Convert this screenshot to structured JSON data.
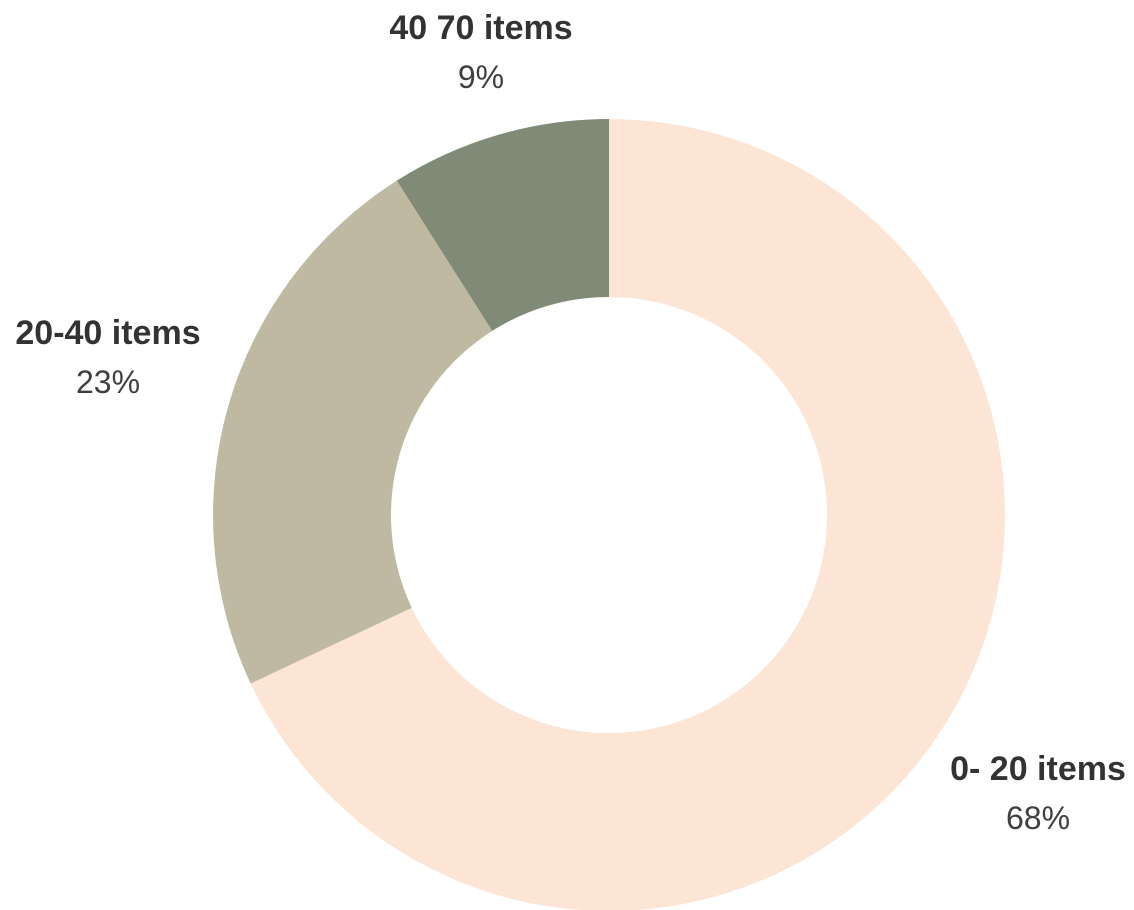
{
  "chart_data": {
    "type": "pie",
    "variant": "donut",
    "title": "",
    "legend": "none",
    "slices": [
      {
        "label": "0- 20 items",
        "value": 68,
        "value_label": "68%",
        "color": "#fde5d5"
      },
      {
        "label": "20-40 items",
        "value": 23,
        "value_label": "23%",
        "color": "#c0b9a1"
      },
      {
        "label": "40 70 items",
        "value": 9,
        "value_label": "9%",
        "color": "#808b77"
      }
    ]
  }
}
